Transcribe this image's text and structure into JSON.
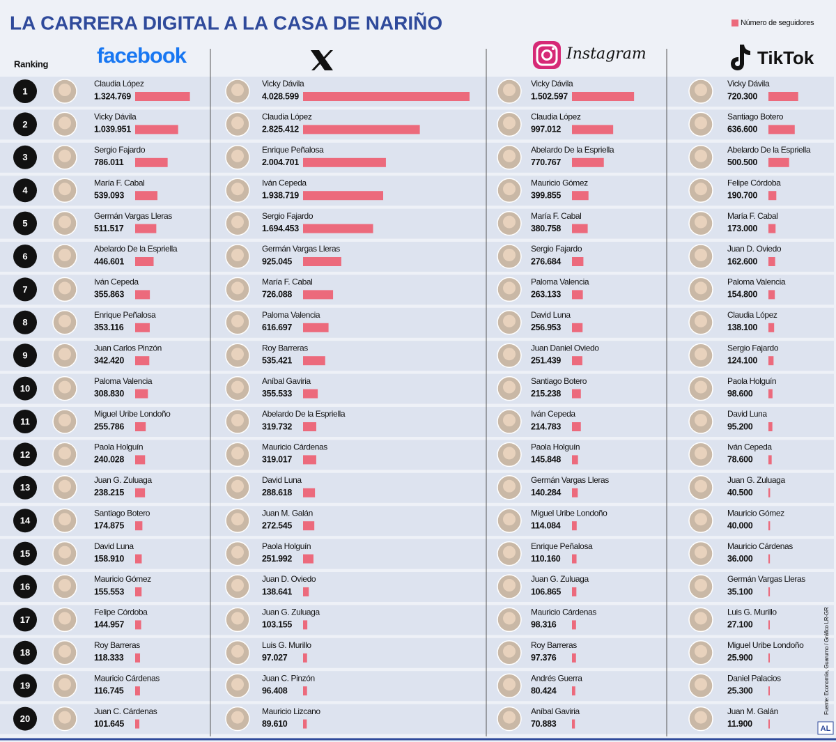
{
  "title": "LA CARRERA DIGITAL A LA CASA DE NARIÑO",
  "legend_label": "Número de seguidores",
  "ranking_label": "Ranking",
  "source": "Fuente: Economía, Guarumo / Gráfico LR-GR",
  "credit": "AL",
  "ranks": [
    1,
    2,
    3,
    4,
    5,
    6,
    7,
    8,
    9,
    10,
    11,
    12,
    13,
    14,
    15,
    16,
    17,
    18,
    19,
    20
  ],
  "chart_data": [
    {
      "type": "bar",
      "platform": "facebook",
      "color": "#ec6a7c",
      "categories": [
        "Claudia López",
        "Vicky Dávila",
        "Sergio Fajardo",
        "María F. Cabal",
        "Germán Vargas Lleras",
        "Abelardo De la Espriella",
        "Iván Cepeda",
        "Enrique Peñalosa",
        "Juan Carlos Pinzón",
        "Paloma Valencia",
        "Miguel Uribe Londoño",
        "Paola Holguín",
        "Juan G. Zuluaga",
        "Santiago Botero",
        "David Luna",
        "Mauricio Gómez",
        "Felipe Córdoba",
        "Roy Barreras",
        "Mauricio Cárdenas",
        "Juan C. Cárdenas"
      ],
      "values": [
        1324769,
        1039951,
        786011,
        539093,
        511517,
        446601,
        355863,
        353116,
        342420,
        308830,
        255786,
        240028,
        238215,
        174875,
        158910,
        155553,
        144957,
        118333,
        116745,
        101645
      ],
      "value_labels": [
        "1.324.769",
        "1.039.951",
        "786.011",
        "539.093",
        "511.517",
        "446.601",
        "355.863",
        "353.116",
        "342.420",
        "308.830",
        "255.786",
        "240.028",
        "238.215",
        "174.875",
        "158.910",
        "155.553",
        "144.957",
        "118.333",
        "116.745",
        "101.645"
      ]
    },
    {
      "type": "bar",
      "color": "#ec6a7c",
      "categories": [
        "Vicky Dávila",
        "Claudia López",
        "Enrique Peñalosa",
        "Iván Cepeda",
        "Sergio Fajardo",
        "Germán Vargas Lleras",
        "María F. Cabal",
        "Paloma Valencia",
        "Roy Barreras",
        "Aníbal Gaviria",
        "Abelardo De la Espriella",
        "Mauricio Cárdenas",
        "David Luna",
        "Juan M. Galán",
        "Paola Holguín",
        "Juan D. Oviedo",
        "Juan G. Zuluaga",
        "Luis G. Murillo",
        "Juan C. Pinzón",
        "Mauricio Lizcano"
      ],
      "values": [
        4028599,
        2825412,
        2004701,
        1938719,
        1694453,
        925045,
        726088,
        616697,
        535421,
        355533,
        319732,
        319017,
        288618,
        272545,
        251992,
        138641,
        103155,
        97027,
        96408,
        89610
      ],
      "value_labels": [
        "4.028.599",
        "2.825.412",
        "2.004.701",
        "1.938.719",
        "1.694.453",
        "925.045",
        "726.088",
        "616.697",
        "535.421",
        "355.533",
        "319.732",
        "319.017",
        "288.618",
        "272.545",
        "251.992",
        "138.641",
        "103.155",
        "97.027",
        "96.408",
        "89.610"
      ]
    },
    {
      "type": "bar",
      "platform": "Instagram",
      "color": "#ec6a7c",
      "categories": [
        "Vicky Dávila",
        "Claudia López",
        "Abelardo De la Espriella",
        "Mauricio Gómez",
        "María F. Cabal",
        "Sergio Fajardo",
        "Paloma Valencia",
        "David Luna",
        "Juan Daniel Oviedo",
        "Santiago Botero",
        "Iván Cepeda",
        "Paola Holguín",
        "Germán Vargas Lleras",
        "Miguel Uribe Londoño",
        "Enrique Peñalosa",
        "Juan G. Zuluaga",
        "Mauricio Cárdenas",
        "Roy Barreras",
        "Andrés Guerra",
        "Aníbal Gaviria"
      ],
      "values": [
        1502597,
        997012,
        770767,
        399855,
        380758,
        276684,
        263133,
        256953,
        251439,
        215238,
        214783,
        145848,
        140284,
        114084,
        110160,
        106865,
        98316,
        97376,
        80424,
        70883
      ],
      "value_labels": [
        "1.502.597",
        "997.012",
        "770.767",
        "399.855",
        "380.758",
        "276.684",
        "263.133",
        "256.953",
        "251.439",
        "215.238",
        "214.783",
        "145.848",
        "140.284",
        "114.084",
        "110.160",
        "106.865",
        "98.316",
        "97.376",
        "80.424",
        "70.883"
      ]
    },
    {
      "type": "bar",
      "platform": "TikTok",
      "color": "#ec6a7c",
      "categories": [
        "Vicky Dávila",
        "Santiago Botero",
        "Abelardo De la Espriella",
        "Felipe Córdoba",
        "María F. Cabal",
        "Juan D. Oviedo",
        "Paloma Valencia",
        "Claudia López",
        "Sergio Fajardo",
        "Paola Holguín",
        "David Luna",
        "Iván Cepeda",
        "Juan G. Zuluaga",
        "Mauricio Gómez",
        "Mauricio Cárdenas",
        "Germán Vargas Lleras",
        "Luis G. Murillo",
        "Miguel Uribe Londoño",
        "Daniel Palacios",
        "Juan M. Galán"
      ],
      "values": [
        720300,
        636600,
        500500,
        190700,
        173000,
        162600,
        154800,
        138100,
        124100,
        98600,
        95200,
        78600,
        40500,
        40000,
        36000,
        35100,
        27100,
        25900,
        25300,
        11900
      ],
      "value_labels": [
        "720.300",
        "636.600",
        "500.500",
        "190.700",
        "173.000",
        "162.600",
        "154.800",
        "138.100",
        "124.100",
        "98.600",
        "95.200",
        "78.600",
        "40.500",
        "40.000",
        "36.000",
        "35.100",
        "27.100",
        "25.900",
        "25.300",
        "11.900"
      ]
    }
  ]
}
